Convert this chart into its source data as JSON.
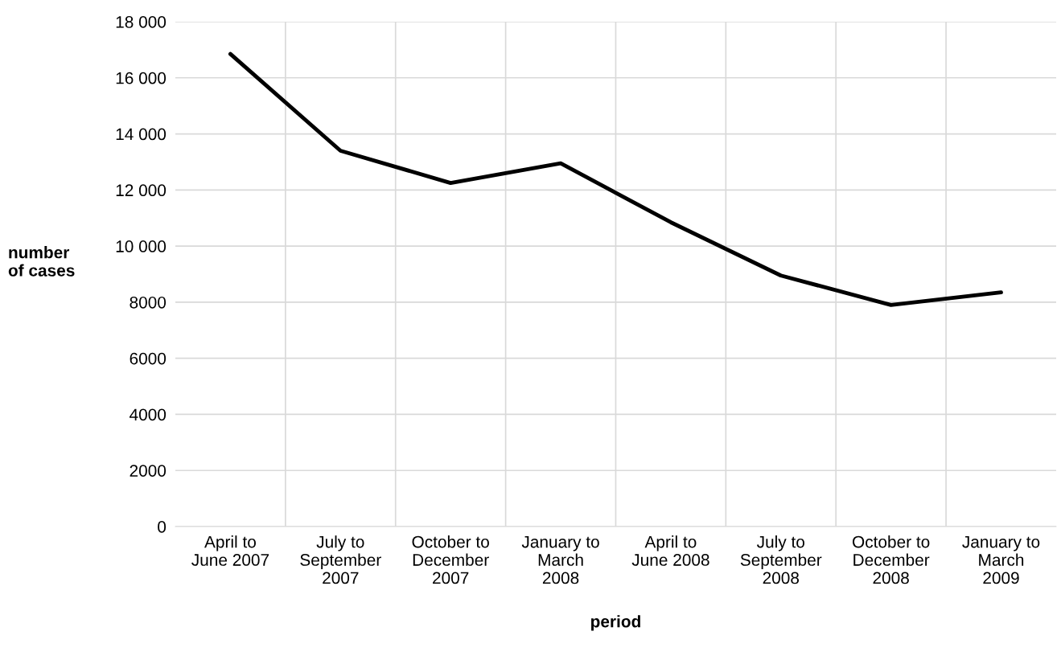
{
  "chart_data": {
    "type": "line",
    "xlabel": "period",
    "ylabel": "number\nof cases",
    "categories": [
      "April to\nJune 2007",
      "July to\nSeptember\n2007",
      "October to\nDecember\n2007",
      "January to\nMarch\n2008",
      "April to\nJune 2008",
      "July to\nSeptember\n2008",
      "October to\nDecember\n2008",
      "January to\nMarch\n2009"
    ],
    "series": [
      {
        "color": "#000000",
        "values": [
          16850,
          13400,
          12250,
          12950,
          10850,
          8950,
          7900,
          8350
        ]
      }
    ],
    "ylim": [
      0,
      18000
    ],
    "yticks": [
      0,
      2000,
      4000,
      6000,
      8000,
      {
        "value": 10000,
        "label": "10 000"
      },
      {
        "value": 12000,
        "label": "12 000"
      },
      {
        "value": 14000,
        "label": "14 000"
      },
      {
        "value": 16000,
        "label": "16 000"
      },
      {
        "value": 18000,
        "label": "18 000"
      }
    ],
    "grid": true,
    "marker": "none",
    "line_style": "solid"
  }
}
